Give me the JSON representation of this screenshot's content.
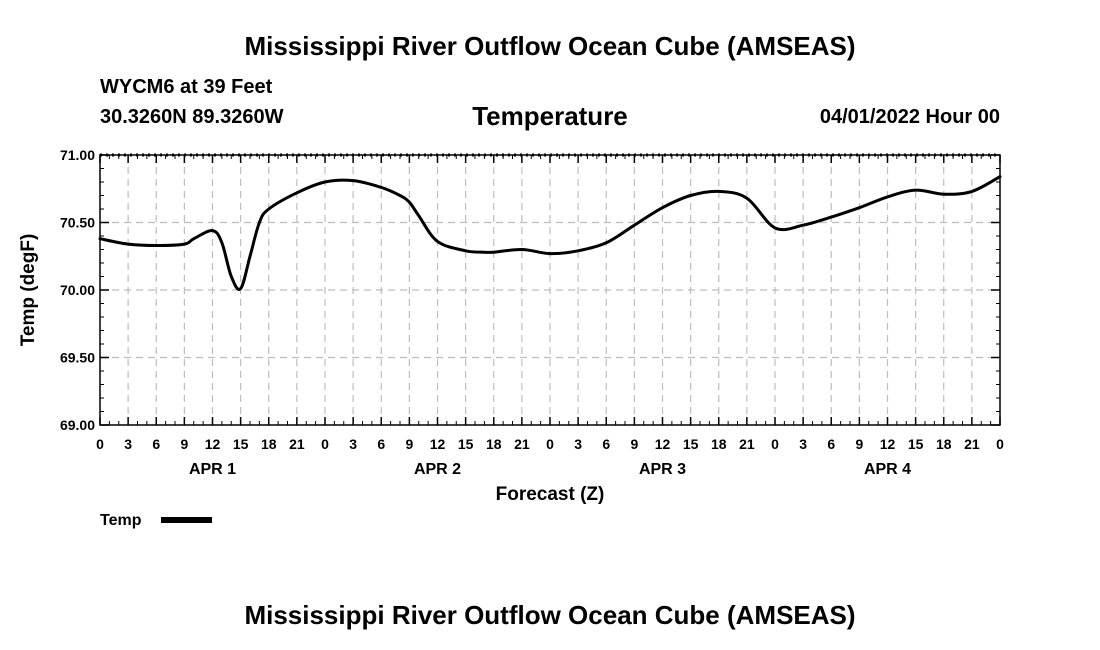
{
  "header": {
    "title": "Mississippi River Outflow Ocean Cube (AMSEAS)",
    "station": "WYCM6 at 39 Feet",
    "coordinates": "30.3260N  89.3260W",
    "variable": "Temperature",
    "datetime": "04/01/2022 Hour 00"
  },
  "footer": {
    "title": "Mississippi River Outflow Ocean Cube (AMSEAS)"
  },
  "chart_data": {
    "type": "line",
    "title": "Temperature",
    "xlabel": "Forecast (Z)",
    "ylabel": "Temp (degF)",
    "ylim": [
      69.0,
      71.0
    ],
    "y_ticks": [
      "69.00",
      "69.50",
      "70.00",
      "70.50",
      "71.00"
    ],
    "x_hour_range": [
      0,
      96
    ],
    "x_tick_labels": [
      "0",
      "3",
      "6",
      "9",
      "12",
      "15",
      "18",
      "21",
      "0",
      "3",
      "6",
      "9",
      "12",
      "15",
      "18",
      "21",
      "0",
      "3",
      "6",
      "9",
      "12",
      "15",
      "18",
      "21",
      "0",
      "3",
      "6",
      "9",
      "12",
      "15",
      "18",
      "21",
      "0"
    ],
    "day_labels": [
      "APR 1",
      "APR 2",
      "APR 3",
      "APR 4"
    ],
    "grid": true,
    "legend": "bottom-left",
    "series": [
      {
        "name": "Temp",
        "x_hours": [
          0,
          3,
          6,
          9,
          10,
          12,
          13,
          14,
          15,
          16,
          17,
          18,
          21,
          24,
          27,
          30,
          32,
          33,
          34,
          36,
          39,
          41,
          42,
          45,
          48,
          51,
          54,
          57,
          60,
          63,
          66,
          69,
          72,
          75,
          78,
          81,
          84,
          87,
          90,
          93,
          96
        ],
        "values": [
          70.38,
          70.34,
          70.33,
          70.34,
          70.38,
          70.44,
          70.35,
          70.1,
          70.01,
          70.25,
          70.5,
          70.6,
          70.72,
          70.8,
          70.81,
          70.76,
          70.7,
          70.65,
          70.55,
          70.36,
          70.29,
          70.28,
          70.28,
          70.3,
          70.27,
          70.29,
          70.35,
          70.48,
          70.61,
          70.7,
          70.73,
          70.68,
          70.46,
          70.48,
          70.54,
          70.61,
          70.69,
          70.74,
          70.71,
          70.73,
          70.84
        ]
      }
    ]
  }
}
